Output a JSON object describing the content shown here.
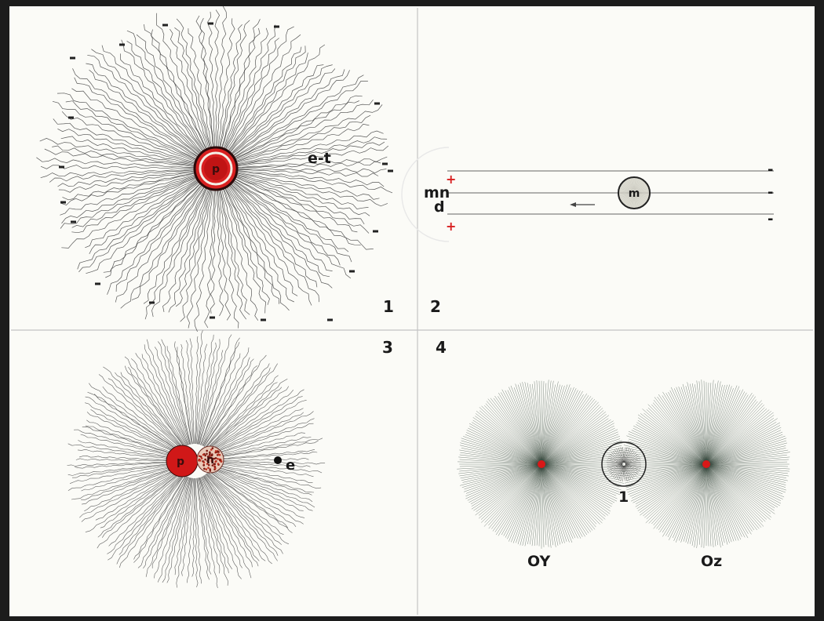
{
  "panels": [
    {
      "number": "1",
      "core_label": "p",
      "field_label": "e-t",
      "colors": {
        "core": "#d82020",
        "ring": "#f4efe6",
        "lines": "#3b3b3b"
      }
    },
    {
      "number": "2",
      "particle_label": "m",
      "side_labels": [
        "mn",
        "d"
      ],
      "plus_marks": [
        "+",
        "+"
      ],
      "minus_marks": [
        "-",
        "-",
        "-"
      ],
      "colors": {
        "particle_fill": "#d6d4c8",
        "plus": "#d82020",
        "lines": "#555555"
      }
    },
    {
      "number": "3",
      "proton_label": "p",
      "neutron_label": "n",
      "electron_label": "e",
      "colors": {
        "proton": "#d01818",
        "neutron": "#c84030",
        "lines": "#444444"
      }
    },
    {
      "number": "4",
      "left_label": "OY",
      "right_label": "Oz",
      "middle_label": "1",
      "colors": {
        "center": "#d81818",
        "lines": "#2f3f35"
      }
    }
  ],
  "colors": {
    "paper": "#fbfbf7",
    "frame": "#1c1c1c",
    "divider": "#bdbdbd"
  }
}
